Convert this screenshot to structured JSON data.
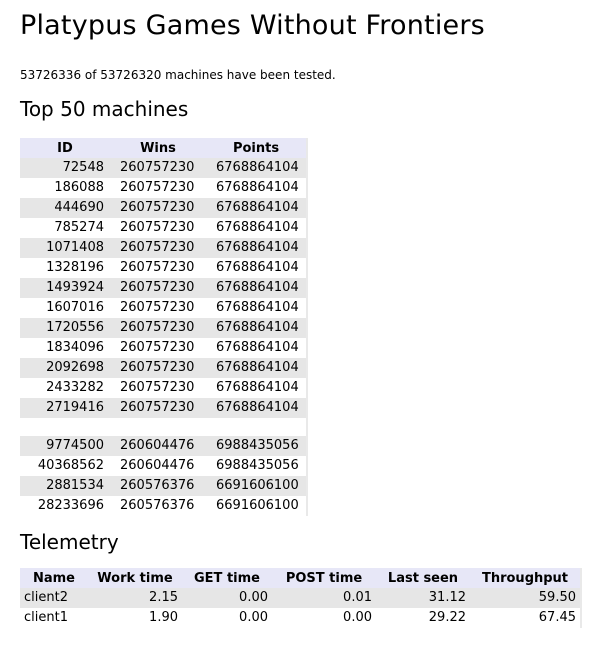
{
  "page": {
    "title": "Platypus Games Without Frontiers",
    "status_text": "53726336 of 53726320 machines have been tested."
  },
  "top": {
    "heading": "Top 50 machines",
    "columns": [
      "ID",
      "Wins",
      "Points"
    ],
    "rows": [
      {
        "id": "72548",
        "wins": "260757230",
        "points": "6768864104"
      },
      {
        "id": "186088",
        "wins": "260757230",
        "points": "6768864104"
      },
      {
        "id": "444690",
        "wins": "260757230",
        "points": "6768864104"
      },
      {
        "id": "785274",
        "wins": "260757230",
        "points": "6768864104"
      },
      {
        "id": "1071408",
        "wins": "260757230",
        "points": "6768864104"
      },
      {
        "id": "1328196",
        "wins": "260757230",
        "points": "6768864104"
      },
      {
        "id": "1493924",
        "wins": "260757230",
        "points": "6768864104"
      },
      {
        "id": "1607016",
        "wins": "260757230",
        "points": "6768864104"
      },
      {
        "id": "1720556",
        "wins": "260757230",
        "points": "6768864104"
      },
      {
        "id": "1834096",
        "wins": "260757230",
        "points": "6768864104"
      },
      {
        "id": "2092698",
        "wins": "260757230",
        "points": "6768864104"
      },
      {
        "id": "2433282",
        "wins": "260757230",
        "points": "6768864104"
      },
      {
        "id": "2719416",
        "wins": "260757230",
        "points": "6768864104"
      },
      {
        "gap": true
      },
      {
        "id": "9774500",
        "wins": "260604476",
        "points": "6988435056"
      },
      {
        "id": "40368562",
        "wins": "260604476",
        "points": "6988435056"
      },
      {
        "id": "2881534",
        "wins": "260576376",
        "points": "6691606100"
      },
      {
        "id": "28233696",
        "wins": "260576376",
        "points": "6691606100"
      }
    ]
  },
  "telemetry": {
    "heading": "Telemetry",
    "columns": [
      "Name",
      "Work time",
      "GET time",
      "POST time",
      "Last seen",
      "Throughput"
    ],
    "rows": [
      {
        "name": "client2",
        "work_time": "2.15",
        "get_time": "0.00",
        "post_time": "0.01",
        "last_seen": "31.12",
        "throughput": "59.50"
      },
      {
        "name": "client1",
        "work_time": "1.90",
        "get_time": "0.00",
        "post_time": "0.00",
        "last_seen": "29.22",
        "throughput": "67.45"
      }
    ]
  },
  "colors": {
    "header_bg": "#e7e7f7",
    "row_alt_bg": "#e6e6e6"
  }
}
